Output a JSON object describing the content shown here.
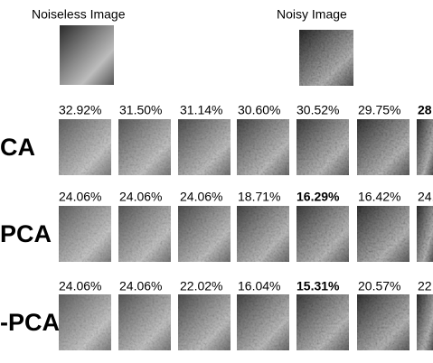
{
  "header": {
    "noiseless_label": "Noiseless Image",
    "noisy_label": "Noisy Image"
  },
  "rows": [
    {
      "label": "CA",
      "errors": [
        "32.92%",
        "31.50%",
        "31.14%",
        "30.60%",
        "30.52%",
        "29.75%",
        "28"
      ],
      "best": 6
    },
    {
      "label": "PCA",
      "errors": [
        "24.06%",
        "24.06%",
        "24.06%",
        "18.71%",
        "16.29%",
        "16.42%",
        "24."
      ],
      "best": 4
    },
    {
      "label": "-PCA",
      "errors": [
        "24.06%",
        "24.06%",
        "22.02%",
        "16.04%",
        "15.31%",
        "20.57%",
        "22"
      ],
      "best": 4
    }
  ]
}
